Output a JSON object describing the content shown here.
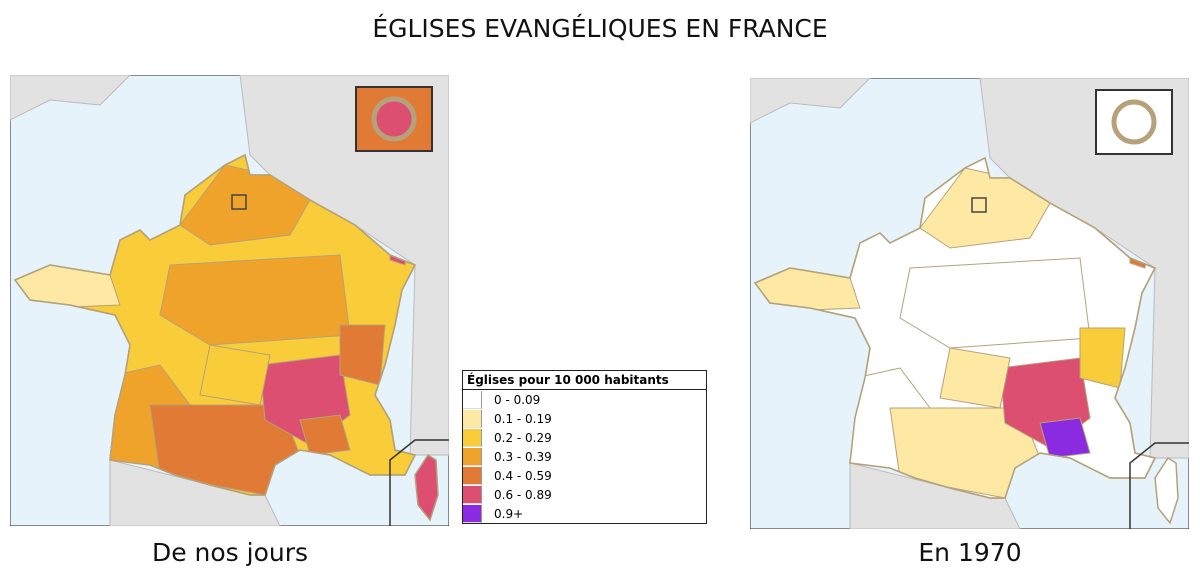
{
  "title": "ÉGLISES EVANGÉLIQUES EN FRANCE",
  "maps": [
    {
      "caption": "De nos jours"
    },
    {
      "caption": "En 1970"
    }
  ],
  "legend": {
    "title": "Églises pour 10 000 habitants",
    "items": [
      {
        "label": "0 - 0.09",
        "color": "#ffffff"
      },
      {
        "label": "0.1 - 0.19",
        "color": "#fde8a4"
      },
      {
        "label": "0.2 - 0.29",
        "color": "#f9cc3a"
      },
      {
        "label": "0.3 - 0.39",
        "color": "#f0a32a"
      },
      {
        "label": "0.4 - 0.59",
        "color": "#e07a35"
      },
      {
        "label": "0.6 - 0.89",
        "color": "#dc4f70"
      },
      {
        "label": "0.9+",
        "color": "#8a2be2"
      }
    ]
  }
}
